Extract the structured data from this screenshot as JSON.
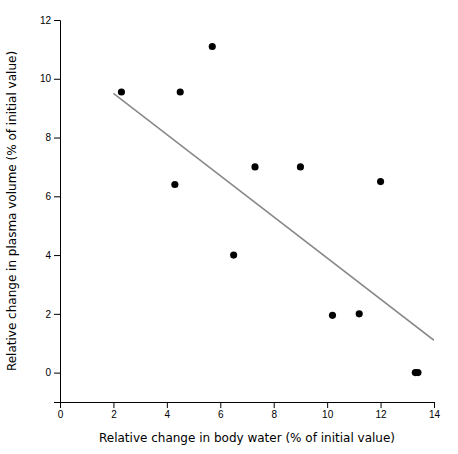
{
  "chart_data": {
    "type": "scatter",
    "xlabel": "Relative change in body water (% of initial value)",
    "ylabel": "Relative change in plasma volume (% of initial value)",
    "series": [
      {
        "type": "line",
        "color": "#888888",
        "line_style": "solid",
        "x": [
          2.0,
          14.0
        ],
        "values": [
          9.5,
          1.1
        ]
      },
      {
        "type": "scatter",
        "color": "#000000",
        "marker": "circle",
        "x": [
          2.3,
          4.3,
          4.5,
          5.7,
          6.5,
          7.3,
          9.0,
          10.2,
          11.2,
          12.0,
          13.3,
          13.4
        ],
        "values": [
          9.55,
          6.4,
          9.55,
          11.1,
          4.0,
          7.0,
          7.0,
          1.95,
          2.0,
          6.5,
          0.0,
          0.0
        ]
      }
    ],
    "xlim": [
      0,
      14
    ],
    "ylim": [
      -1,
      12
    ],
    "xticks": [
      0,
      2,
      4,
      6,
      8,
      10,
      12,
      14
    ],
    "yticks": [
      0,
      2,
      4,
      6,
      8,
      10,
      12
    ],
    "grid": false
  }
}
